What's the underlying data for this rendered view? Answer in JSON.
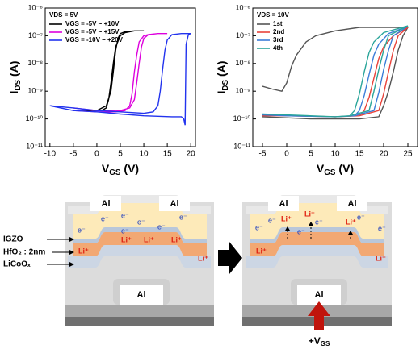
{
  "chart_data": [
    {
      "type": "line",
      "y_scale": "log",
      "legend_loc": "upper left",
      "legend_title": "VDS = 5V",
      "x_label": {
        "text": "V",
        "sub": "GS",
        "unit": "(V)"
      },
      "y_label": {
        "text": "I",
        "sub": "DS",
        "unit": "(A)"
      },
      "xlim": [
        -11,
        21
      ],
      "xticks": [
        -10,
        -5,
        0,
        5,
        10,
        15,
        20
      ],
      "ylim": [
        1e-11,
        1e-06
      ],
      "yticks": [
        {
          "value": 1e-11,
          "label": "10⁻¹¹"
        },
        {
          "value": 1e-10,
          "label": "10⁻¹⁰"
        },
        {
          "value": 1e-09,
          "label": "10⁻⁹"
        },
        {
          "value": 1e-08,
          "label": "10⁻⁸"
        },
        {
          "value": 1e-07,
          "label": "10⁻⁷"
        },
        {
          "value": 1e-06,
          "label": "10⁻⁶"
        }
      ],
      "series": [
        {
          "name": "VGS = -5V ~ +10V",
          "color": "#000000",
          "x": [
            -5,
            -2,
            0,
            1,
            2,
            2.5,
            3,
            3.5,
            4,
            5,
            6,
            8,
            10,
            10,
            8,
            6,
            5,
            4.5,
            4,
            3.5,
            3,
            2,
            0,
            -5
          ],
          "values": [
            2e-10,
            2e-10,
            2e-10,
            2e-10,
            2.5e-10,
            5e-10,
            2e-09,
            1e-08,
            4e-08,
            1e-07,
            1.3e-07,
            1.5e-07,
            1.5e-07,
            1.5e-07,
            1.5e-07,
            1.4e-07,
            1.2e-07,
            8e-08,
            3e-08,
            5e-09,
            1e-09,
            3e-10,
            2e-10,
            2e-10
          ]
        },
        {
          "name": "VGS = -5V ~ +15V",
          "color": "#dd00dd",
          "x": [
            -5,
            0,
            4,
            6,
            7,
            7.5,
            8,
            8.5,
            9,
            10,
            11,
            13,
            15,
            15,
            13,
            11,
            10,
            9.5,
            9,
            8.5,
            8,
            7,
            5,
            0,
            -5
          ],
          "values": [
            2e-10,
            1.8e-10,
            1.8e-10,
            2e-10,
            3e-10,
            8e-10,
            5e-09,
            2e-08,
            6e-08,
            1e-07,
            1.1e-07,
            1.2e-07,
            1.2e-07,
            1.2e-07,
            1.2e-07,
            1.1e-07,
            8e-08,
            4e-08,
            1e-08,
            2e-09,
            5e-10,
            2.5e-10,
            2e-10,
            2e-10,
            2.5e-10
          ]
        },
        {
          "name": "VGS = -10V ~ +20V",
          "color": "#2233ee",
          "x": [
            -10,
            -5,
            0,
            5,
            10,
            12,
            13,
            13.5,
            14,
            14.5,
            15,
            16,
            18,
            20,
            20,
            19.5,
            19,
            18.8,
            18.5,
            18,
            16,
            10,
            5,
            0,
            -5,
            -10
          ],
          "values": [
            3e-10,
            2.5e-10,
            2e-10,
            1.8e-10,
            1.6e-10,
            1.8e-10,
            3e-10,
            1e-09,
            6e-09,
            3e-08,
            7e-08,
            1.1e-07,
            1.2e-07,
            1.2e-07,
            1.2e-07,
            1.1e-07,
            5e-08,
            6e-11,
            1e-10,
            1.2e-10,
            1.2e-10,
            1.3e-10,
            1.5e-10,
            1.8e-10,
            2e-10,
            3e-10
          ]
        }
      ]
    },
    {
      "type": "line",
      "y_scale": "log",
      "legend_loc": "upper left",
      "legend_title": "VDS = 10V",
      "x_label": {
        "text": "V",
        "sub": "GS",
        "unit": "(V)"
      },
      "y_label": {
        "text": "I",
        "sub": "DS",
        "unit": "(A)"
      },
      "xlim": [
        -7,
        27
      ],
      "xticks": [
        -5,
        0,
        5,
        10,
        15,
        20,
        25
      ],
      "ylim": [
        1e-11,
        1e-06
      ],
      "yticks": [
        {
          "value": 1e-11,
          "label": "10⁻¹¹"
        },
        {
          "value": 1e-10,
          "label": "10⁻¹⁰"
        },
        {
          "value": 1e-09,
          "label": "10⁻⁹"
        },
        {
          "value": 1e-08,
          "label": "10⁻⁸"
        },
        {
          "value": 1e-07,
          "label": "10⁻⁷"
        },
        {
          "value": 1e-06,
          "label": "10⁻⁶"
        }
      ],
      "series": [
        {
          "name": "1st",
          "color": "#555555",
          "x": [
            -5,
            -3,
            -1,
            0,
            1,
            2,
            4,
            6,
            10,
            15,
            20,
            25,
            25,
            24,
            23,
            22,
            21,
            20,
            19,
            15,
            10,
            5,
            0,
            -5
          ],
          "values": [
            1.5e-09,
            1.2e-09,
            1e-09,
            2e-09,
            8e-09,
            2e-08,
            6e-08,
            1e-07,
            1.5e-07,
            2e-07,
            2e-07,
            2e-07,
            2e-07,
            1e-07,
            3e-08,
            5e-09,
            1e-09,
            3e-10,
            1.2e-10,
            1e-10,
            1e-10,
            1e-10,
            1.1e-10,
            1.2e-10
          ]
        },
        {
          "name": "2nd",
          "color": "#e8423a",
          "x": [
            -5,
            0,
            10,
            15,
            16,
            17,
            18,
            19,
            20,
            22,
            25,
            25,
            23,
            22,
            21,
            20,
            19,
            15,
            10,
            0,
            -5
          ],
          "values": [
            1.3e-10,
            1.3e-10,
            1.2e-10,
            1.3e-10,
            2e-10,
            6e-10,
            3e-09,
            1.5e-08,
            4e-08,
            1e-07,
            2e-07,
            2e-07,
            1e-07,
            3e-08,
            5e-09,
            8e-10,
            2e-10,
            1.3e-10,
            1.2e-10,
            1.3e-10,
            1.3e-10
          ]
        },
        {
          "name": "3rd",
          "color": "#3b7dd8",
          "x": [
            -5,
            0,
            10,
            14,
            15,
            16,
            17,
            18,
            19,
            21,
            25,
            25,
            22,
            21,
            20,
            19,
            18,
            14,
            10,
            0,
            -5
          ],
          "values": [
            1.4e-10,
            1.3e-10,
            1.2e-10,
            1.3e-10,
            2e-10,
            7e-10,
            4e-09,
            2e-08,
            5e-08,
            1.2e-07,
            2.2e-07,
            2.2e-07,
            1e-07,
            3e-08,
            6e-09,
            9e-10,
            2e-10,
            1.3e-10,
            1.2e-10,
            1.3e-10,
            1.4e-10
          ]
        },
        {
          "name": "4th",
          "color": "#2aa59a",
          "x": [
            -5,
            0,
            10,
            13,
            14,
            15,
            16,
            17,
            18,
            20,
            25,
            25,
            21,
            20,
            19,
            18,
            17,
            13,
            10,
            0,
            -5
          ],
          "values": [
            1.5e-10,
            1.4e-10,
            1.2e-10,
            1.3e-10,
            2e-10,
            8e-10,
            5e-09,
            2.5e-08,
            6e-08,
            1.3e-07,
            2.3e-07,
            2.3e-07,
            1e-07,
            3e-08,
            6e-09,
            1e-09,
            2e-10,
            1.3e-10,
            1.2e-10,
            1.4e-10,
            1.5e-10
          ]
        }
      ]
    }
  ],
  "diagram": {
    "electrode": "Al",
    "electron": "e⁻",
    "lithium": "Li⁺",
    "layers": [
      "IGZO",
      "HfO₂ : 2nm",
      "LiCoOₓ"
    ],
    "gate_label": {
      "text": "+V",
      "sub": "GS"
    }
  }
}
